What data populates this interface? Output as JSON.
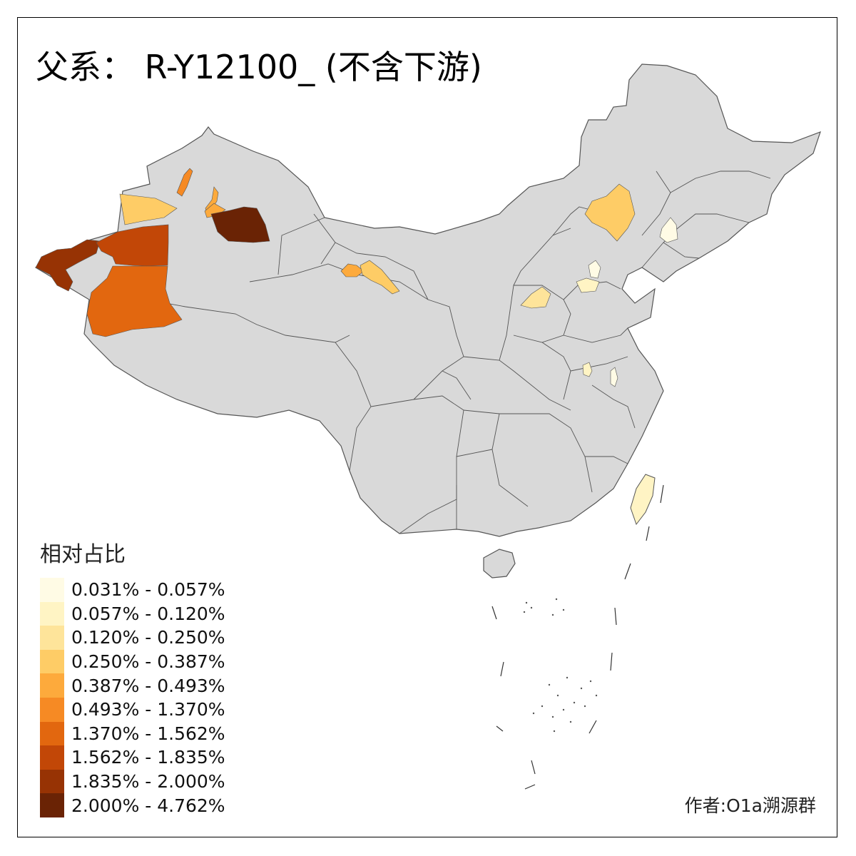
{
  "title": "父系： R-Y12100_ (不含下游)",
  "legend": {
    "title": "相对占比",
    "items": [
      {
        "label": "0.031% - 0.057%",
        "color": "#FFFBE5"
      },
      {
        "label": "0.057% - 0.120%",
        "color": "#FFF4C4"
      },
      {
        "label": "0.120% - 0.250%",
        "color": "#FEE49A"
      },
      {
        "label": "0.250% - 0.387%",
        "color": "#FECC66"
      },
      {
        "label": "0.387% - 0.493%",
        "color": "#FDAA3C"
      },
      {
        "label": "0.493% - 1.370%",
        "color": "#F68A24"
      },
      {
        "label": "1.370% - 1.562%",
        "color": "#E2670F"
      },
      {
        "label": "1.562% - 1.835%",
        "color": "#C24707"
      },
      {
        "label": "1.835% - 2.000%",
        "color": "#973304"
      },
      {
        "label": "2.000% - 4.762%",
        "color": "#6A2305"
      }
    ]
  },
  "author": "作者:O1a溯源群",
  "map": {
    "base_color": "#D9D9D9",
    "border_color": "#555555",
    "regions": [
      {
        "name": "ili",
        "class": 3
      },
      {
        "name": "altay",
        "class": 5
      },
      {
        "name": "tacheng",
        "class": 4
      },
      {
        "name": "changji",
        "class": 4
      },
      {
        "name": "turpan",
        "class": 9
      },
      {
        "name": "kashgar-kizilsu",
        "class": 8
      },
      {
        "name": "aksu",
        "class": 7
      },
      {
        "name": "hotan-region",
        "class": 6
      },
      {
        "name": "gansu-hexi-west",
        "class": 4
      },
      {
        "name": "gansu-hexi-east",
        "class": 3
      },
      {
        "name": "inner-mongolia-east",
        "class": 3
      },
      {
        "name": "jilin-region",
        "class": 0
      },
      {
        "name": "shanxi-region",
        "class": 2
      },
      {
        "name": "beijing-region",
        "class": 1
      },
      {
        "name": "hebei-region",
        "class": 0
      },
      {
        "name": "henan-region",
        "class": 1
      },
      {
        "name": "anhui-region",
        "class": 0
      },
      {
        "name": "taiwan",
        "class": 1
      }
    ]
  }
}
